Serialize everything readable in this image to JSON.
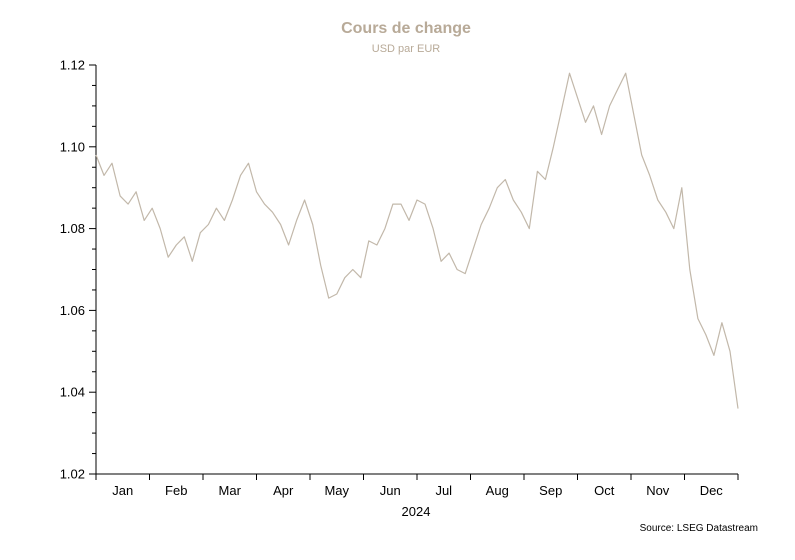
{
  "chart_data": {
    "type": "line",
    "title": "Cours de change",
    "subtitle": "USD par EUR",
    "xlabel": "2024",
    "ylabel": "",
    "ylim": [
      1.02,
      1.12
    ],
    "yticks": [
      "1.02",
      "1.04",
      "1.06",
      "1.08",
      "1.10",
      "1.12"
    ],
    "xticks": [
      "Jan",
      "Feb",
      "Mar",
      "Apr",
      "May",
      "Jun",
      "Jul",
      "Aug",
      "Sep",
      "Oct",
      "Nov",
      "Dec"
    ],
    "source": "Source: LSEG Datastream",
    "grid": false,
    "legend": "none",
    "line_color": "#c2b8aa",
    "title_color": "#b8aa98",
    "series": [
      {
        "x": [
          0.0,
          0.15,
          0.3,
          0.45,
          0.6,
          0.75,
          0.9,
          1.05,
          1.2,
          1.35,
          1.5,
          1.65,
          1.8,
          1.95,
          2.1,
          2.25,
          2.4,
          2.55,
          2.7,
          2.85,
          3.0,
          3.15,
          3.3,
          3.45,
          3.6,
          3.75,
          3.9,
          4.05,
          4.2,
          4.35,
          4.5,
          4.65,
          4.8,
          4.95,
          5.1,
          5.25,
          5.4,
          5.55,
          5.7,
          5.85,
          6.0,
          6.15,
          6.3,
          6.45,
          6.6,
          6.75,
          6.9,
          7.05,
          7.2,
          7.35,
          7.5,
          7.65,
          7.8,
          7.95,
          8.1,
          8.25,
          8.4,
          8.55,
          8.7,
          8.85,
          9.0,
          9.15,
          9.3,
          9.45,
          9.6,
          9.75,
          9.9,
          10.05,
          10.2,
          10.35,
          10.5,
          10.65,
          10.8,
          10.95,
          11.1,
          11.25,
          11.4,
          11.55,
          11.7,
          11.85,
          12.0
        ],
        "values": [
          1.098,
          1.093,
          1.096,
          1.088,
          1.086,
          1.089,
          1.082,
          1.085,
          1.08,
          1.073,
          1.076,
          1.078,
          1.072,
          1.079,
          1.081,
          1.085,
          1.082,
          1.087,
          1.093,
          1.096,
          1.089,
          1.086,
          1.084,
          1.081,
          1.076,
          1.082,
          1.087,
          1.081,
          1.071,
          1.063,
          1.064,
          1.068,
          1.07,
          1.068,
          1.077,
          1.076,
          1.08,
          1.086,
          1.086,
          1.082,
          1.087,
          1.086,
          1.08,
          1.072,
          1.074,
          1.07,
          1.069,
          1.075,
          1.081,
          1.085,
          1.09,
          1.092,
          1.087,
          1.084,
          1.08,
          1.094,
          1.092,
          1.1,
          1.109,
          1.118,
          1.112,
          1.106,
          1.11,
          1.103,
          1.11,
          1.114,
          1.118,
          1.108,
          1.098,
          1.093,
          1.087,
          1.084,
          1.08,
          1.09,
          1.07,
          1.058,
          1.054,
          1.049,
          1.057,
          1.05,
          1.036
        ]
      }
    ]
  }
}
